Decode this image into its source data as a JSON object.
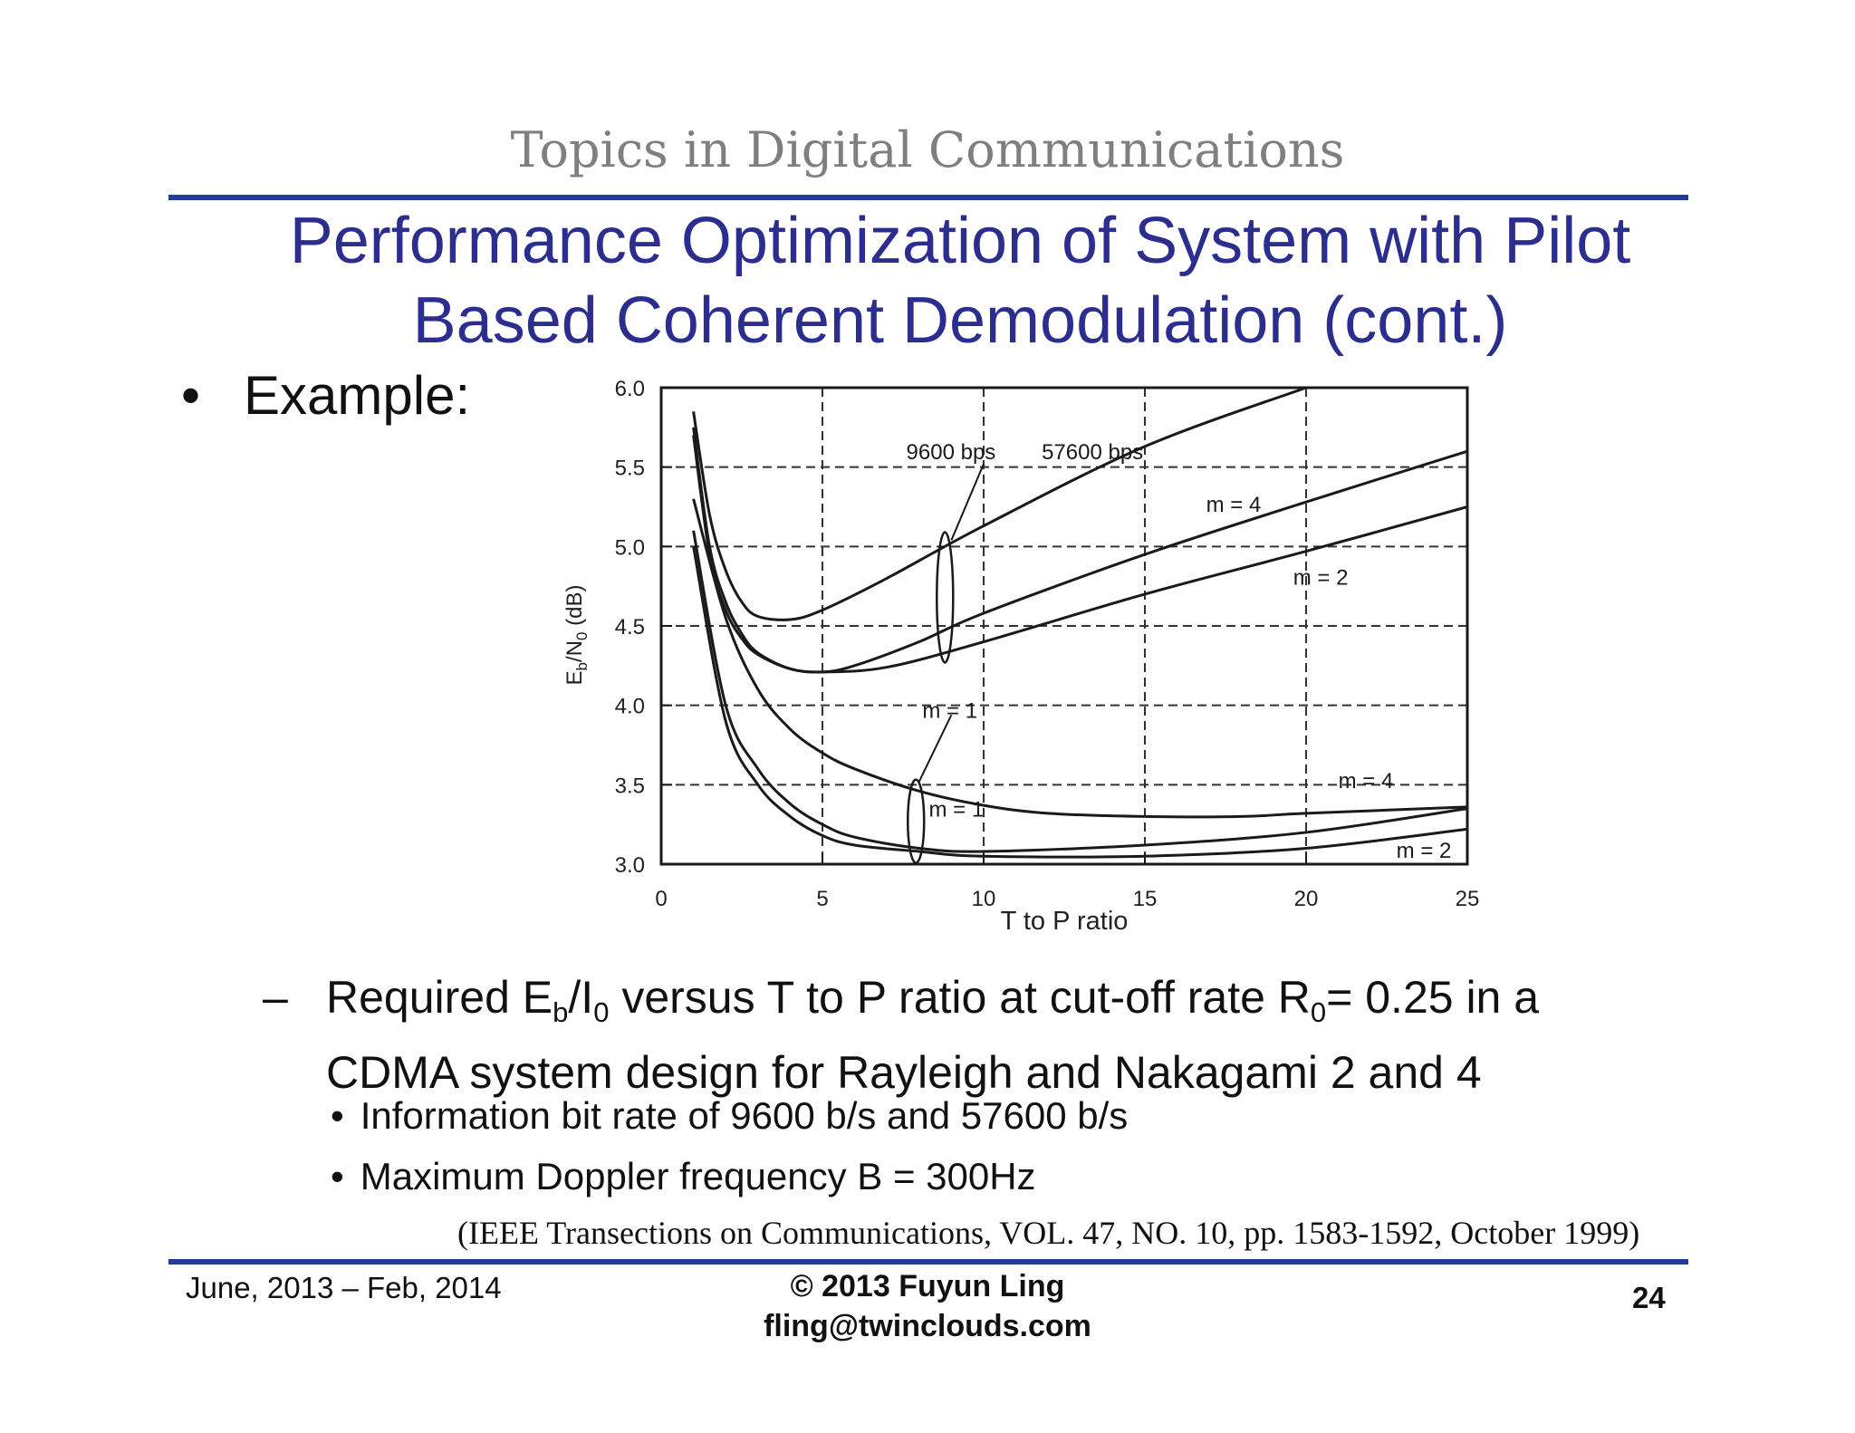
{
  "header": {
    "title": "Topics in Digital Communications"
  },
  "slide": {
    "title_line1": "Performance Optimization of System with Pilot",
    "title_line2": "Based Coherent Demodulation (cont.)",
    "bullet_marker": "•",
    "bullet": "Example:",
    "dash": "–",
    "caption": {
      "p1": "Required E",
      "s1": "b",
      "p2": "/I",
      "s2": "0",
      "p3": " versus T to P ratio at cut-off rate R",
      "s3": "0",
      "p4": "= 0.25 in a",
      "line2": "CDMA system design for Rayleigh and Nakagami 2 and 4"
    },
    "sub_bullets": [
      "Information bit rate of 9600 b/s and 57600 b/s",
      "Maximum Doppler frequency B = 300Hz"
    ],
    "citation": "(IEEE Transections on Communications, VOL. 47, NO. 10, pp. 1583-1592, October 1999)"
  },
  "footer": {
    "date": "June, 2013 – Feb, 2014",
    "copyright": "© 2013 Fuyun Ling",
    "email": "fling@twinclouds.com",
    "page": "24"
  },
  "chart_data": {
    "type": "line",
    "xlabel": "T to P ratio",
    "ylabel": "E_b/N_0 (dB)",
    "xlim": [
      0,
      25
    ],
    "ylim": [
      3.0,
      6.0
    ],
    "xticks": [
      0,
      5,
      10,
      15,
      20,
      25
    ],
    "yticks": [
      3.0,
      3.5,
      4.0,
      4.5,
      5.0,
      5.5,
      6.0
    ],
    "grid": true,
    "annotations": [
      "9600 bps",
      "57600 bps",
      "m = 4",
      "m = 2",
      "m = 1",
      "m = 1",
      "m = 4",
      "m = 2"
    ],
    "series": [
      {
        "name": "9600 bps, m = 4",
        "points": [
          [
            1,
            5.85
          ],
          [
            1.5,
            5.2
          ],
          [
            2,
            4.85
          ],
          [
            2.5,
            4.65
          ],
          [
            3,
            4.56
          ],
          [
            4,
            4.54
          ],
          [
            5,
            4.6
          ],
          [
            7,
            4.8
          ],
          [
            10,
            5.13
          ],
          [
            15,
            5.63
          ],
          [
            20,
            6.0
          ]
        ]
      },
      {
        "name": "9600 bps, m = 2",
        "points": [
          [
            1,
            5.75
          ],
          [
            1.5,
            5.0
          ],
          [
            2,
            4.65
          ],
          [
            2.5,
            4.45
          ],
          [
            3,
            4.33
          ],
          [
            4,
            4.23
          ],
          [
            5,
            4.21
          ],
          [
            6,
            4.25
          ],
          [
            8,
            4.4
          ],
          [
            10,
            4.58
          ],
          [
            15,
            4.95
          ],
          [
            20,
            5.28
          ],
          [
            25,
            5.6
          ]
        ]
      },
      {
        "name": "9600 bps, m = 1",
        "points": [
          [
            1,
            5.7
          ],
          [
            1.5,
            4.95
          ],
          [
            2,
            4.6
          ],
          [
            2.5,
            4.42
          ],
          [
            3,
            4.32
          ],
          [
            4,
            4.23
          ],
          [
            5,
            4.21
          ],
          [
            7,
            4.24
          ],
          [
            10,
            4.4
          ],
          [
            15,
            4.7
          ],
          [
            20,
            4.97
          ],
          [
            25,
            5.25
          ]
        ]
      },
      {
        "name": "57600 bps, m = 1",
        "points": [
          [
            1,
            5.3
          ],
          [
            2,
            4.55
          ],
          [
            3,
            4.1
          ],
          [
            4,
            3.85
          ],
          [
            5,
            3.7
          ],
          [
            6,
            3.6
          ],
          [
            8,
            3.46
          ],
          [
            10,
            3.37
          ],
          [
            12,
            3.32
          ],
          [
            15,
            3.3
          ],
          [
            18,
            3.3
          ],
          [
            20,
            3.32
          ],
          [
            25,
            3.36
          ]
        ]
      },
      {
        "name": "57600 bps, m = 2",
        "points": [
          [
            1,
            5.1
          ],
          [
            2,
            4.0
          ],
          [
            3,
            3.6
          ],
          [
            4,
            3.38
          ],
          [
            5,
            3.25
          ],
          [
            6,
            3.17
          ],
          [
            8,
            3.1
          ],
          [
            10,
            3.08
          ],
          [
            15,
            3.12
          ],
          [
            20,
            3.2
          ],
          [
            25,
            3.35
          ]
        ]
      },
      {
        "name": "57600 bps, m = 4",
        "points": [
          [
            1,
            5.0
          ],
          [
            2,
            3.9
          ],
          [
            3,
            3.5
          ],
          [
            4,
            3.3
          ],
          [
            5,
            3.18
          ],
          [
            6,
            3.12
          ],
          [
            8,
            3.08
          ],
          [
            10,
            3.05
          ],
          [
            15,
            3.05
          ],
          [
            20,
            3.1
          ],
          [
            25,
            3.22
          ]
        ]
      }
    ]
  }
}
